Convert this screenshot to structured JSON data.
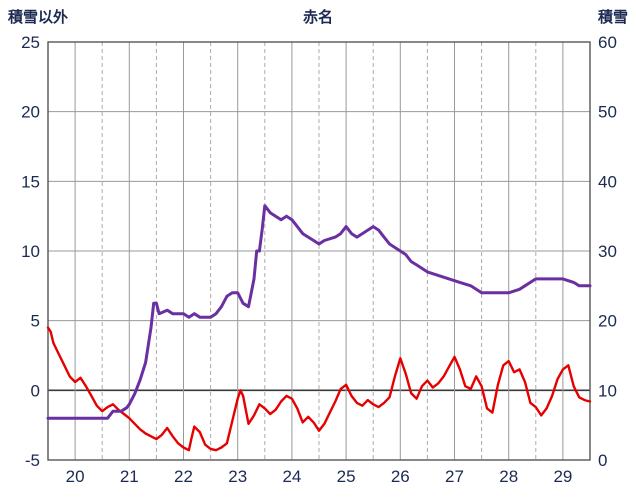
{
  "header": {
    "left_axis_title": "積雪以外",
    "title": "赤名",
    "right_axis_title": "積雪"
  },
  "chart_data": {
    "type": "line",
    "title": "赤名",
    "x_axis": {
      "min": 19.5,
      "max": 29.5,
      "ticks": [
        20,
        21,
        22,
        23,
        24,
        25,
        26,
        27,
        28,
        29
      ]
    },
    "left_axis": {
      "label": "積雪以外",
      "min": -5,
      "max": 25,
      "ticks": [
        -5,
        0,
        5,
        10,
        15,
        20,
        25
      ]
    },
    "right_axis": {
      "label": "積雪",
      "min": 0,
      "max": 60,
      "ticks": [
        0,
        10,
        20,
        30,
        40,
        50,
        60
      ]
    },
    "grid": {
      "h_solid": true,
      "v_solid_at_days": true,
      "v_dashed_at_half_days": true,
      "zero_line_emphasized": true
    },
    "colors": {
      "grid": "#9a9a9a",
      "grid_dashed": "#ababab",
      "zero_line": "#3a3a3a",
      "frame": "#555555",
      "tick_text": "#1c2a52"
    },
    "series": [
      {
        "name": "積雪以外",
        "axis": "left",
        "color": "#e60000",
        "width": 2.4,
        "points": [
          [
            19.5,
            4.5
          ],
          [
            19.55,
            4.2
          ],
          [
            19.6,
            3.4
          ],
          [
            19.7,
            2.6
          ],
          [
            19.8,
            1.8
          ],
          [
            19.9,
            1.0
          ],
          [
            20.0,
            0.6
          ],
          [
            20.1,
            0.9
          ],
          [
            20.2,
            0.3
          ],
          [
            20.3,
            -0.4
          ],
          [
            20.4,
            -1.1
          ],
          [
            20.5,
            -1.5
          ],
          [
            20.6,
            -1.2
          ],
          [
            20.7,
            -1.0
          ],
          [
            20.8,
            -1.4
          ],
          [
            20.9,
            -1.7
          ],
          [
            21.0,
            -2.0
          ],
          [
            21.1,
            -2.4
          ],
          [
            21.2,
            -2.8
          ],
          [
            21.3,
            -3.1
          ],
          [
            21.4,
            -3.3
          ],
          [
            21.5,
            -3.5
          ],
          [
            21.6,
            -3.2
          ],
          [
            21.7,
            -2.7
          ],
          [
            21.8,
            -3.3
          ],
          [
            21.9,
            -3.8
          ],
          [
            22.0,
            -4.1
          ],
          [
            22.1,
            -4.3
          ],
          [
            22.15,
            -3.4
          ],
          [
            22.2,
            -2.6
          ],
          [
            22.3,
            -3.0
          ],
          [
            22.4,
            -3.9
          ],
          [
            22.5,
            -4.2
          ],
          [
            22.6,
            -4.3
          ],
          [
            22.7,
            -4.1
          ],
          [
            22.8,
            -3.8
          ],
          [
            22.9,
            -2.2
          ],
          [
            23.0,
            -0.6
          ],
          [
            23.05,
            0.0
          ],
          [
            23.1,
            -0.4
          ],
          [
            23.2,
            -2.4
          ],
          [
            23.3,
            -1.8
          ],
          [
            23.4,
            -1.0
          ],
          [
            23.5,
            -1.3
          ],
          [
            23.6,
            -1.7
          ],
          [
            23.7,
            -1.4
          ],
          [
            23.8,
            -0.8
          ],
          [
            23.9,
            -0.4
          ],
          [
            24.0,
            -0.6
          ],
          [
            24.1,
            -1.3
          ],
          [
            24.2,
            -2.3
          ],
          [
            24.3,
            -1.9
          ],
          [
            24.4,
            -2.3
          ],
          [
            24.5,
            -2.9
          ],
          [
            24.6,
            -2.4
          ],
          [
            24.7,
            -1.6
          ],
          [
            24.8,
            -0.8
          ],
          [
            24.9,
            0.1
          ],
          [
            25.0,
            0.4
          ],
          [
            25.1,
            -0.4
          ],
          [
            25.2,
            -0.9
          ],
          [
            25.3,
            -1.1
          ],
          [
            25.4,
            -0.7
          ],
          [
            25.5,
            -1.0
          ],
          [
            25.6,
            -1.2
          ],
          [
            25.7,
            -0.9
          ],
          [
            25.8,
            -0.5
          ],
          [
            25.9,
            1.0
          ],
          [
            26.0,
            2.3
          ],
          [
            26.1,
            1.2
          ],
          [
            26.2,
            -0.2
          ],
          [
            26.3,
            -0.6
          ],
          [
            26.4,
            0.3
          ],
          [
            26.5,
            0.7
          ],
          [
            26.6,
            0.2
          ],
          [
            26.7,
            0.5
          ],
          [
            26.8,
            1.0
          ],
          [
            26.9,
            1.7
          ],
          [
            27.0,
            2.4
          ],
          [
            27.1,
            1.5
          ],
          [
            27.2,
            0.3
          ],
          [
            27.3,
            0.1
          ],
          [
            27.4,
            1.0
          ],
          [
            27.5,
            0.3
          ],
          [
            27.6,
            -1.3
          ],
          [
            27.7,
            -1.6
          ],
          [
            27.8,
            0.4
          ],
          [
            27.9,
            1.8
          ],
          [
            28.0,
            2.1
          ],
          [
            28.1,
            1.3
          ],
          [
            28.2,
            1.5
          ],
          [
            28.3,
            0.6
          ],
          [
            28.4,
            -0.9
          ],
          [
            28.5,
            -1.2
          ],
          [
            28.6,
            -1.8
          ],
          [
            28.7,
            -1.3
          ],
          [
            28.8,
            -0.4
          ],
          [
            28.9,
            0.8
          ],
          [
            29.0,
            1.5
          ],
          [
            29.1,
            1.8
          ],
          [
            29.2,
            0.3
          ],
          [
            29.3,
            -0.5
          ],
          [
            29.4,
            -0.7
          ],
          [
            29.5,
            -0.8
          ]
        ]
      },
      {
        "name": "積雪",
        "axis": "right",
        "color": "#6a2fa0",
        "width": 3,
        "points": [
          [
            19.5,
            6
          ],
          [
            20.0,
            6
          ],
          [
            20.5,
            6
          ],
          [
            20.6,
            6
          ],
          [
            20.7,
            7
          ],
          [
            20.85,
            7
          ],
          [
            20.95,
            7.5
          ],
          [
            21.0,
            8
          ],
          [
            21.1,
            9.5
          ],
          [
            21.2,
            11.5
          ],
          [
            21.3,
            14
          ],
          [
            21.4,
            19
          ],
          [
            21.45,
            22.5
          ],
          [
            21.5,
            22.5
          ],
          [
            21.55,
            21
          ],
          [
            21.7,
            21.5
          ],
          [
            21.8,
            21
          ],
          [
            22.0,
            21
          ],
          [
            22.1,
            20.5
          ],
          [
            22.2,
            21
          ],
          [
            22.3,
            20.5
          ],
          [
            22.5,
            20.5
          ],
          [
            22.6,
            21
          ],
          [
            22.7,
            22
          ],
          [
            22.8,
            23.5
          ],
          [
            22.9,
            24
          ],
          [
            23.0,
            24
          ],
          [
            23.1,
            22.5
          ],
          [
            23.2,
            22
          ],
          [
            23.3,
            26
          ],
          [
            23.35,
            30
          ],
          [
            23.4,
            30
          ],
          [
            23.45,
            33
          ],
          [
            23.5,
            36.5
          ],
          [
            23.6,
            35.5
          ],
          [
            23.7,
            35
          ],
          [
            23.8,
            34.5
          ],
          [
            23.9,
            35
          ],
          [
            24.0,
            34.5
          ],
          [
            24.1,
            33.5
          ],
          [
            24.2,
            32.5
          ],
          [
            24.3,
            32
          ],
          [
            24.4,
            31.5
          ],
          [
            24.5,
            31
          ],
          [
            24.6,
            31.5
          ],
          [
            24.8,
            32
          ],
          [
            24.9,
            32.5
          ],
          [
            25.0,
            33.5
          ],
          [
            25.1,
            32.5
          ],
          [
            25.2,
            32
          ],
          [
            25.3,
            32.5
          ],
          [
            25.5,
            33.5
          ],
          [
            25.6,
            33
          ],
          [
            25.7,
            32
          ],
          [
            25.8,
            31
          ],
          [
            26.0,
            30
          ],
          [
            26.1,
            29.5
          ],
          [
            26.2,
            28.5
          ],
          [
            26.3,
            28
          ],
          [
            26.5,
            27
          ],
          [
            26.7,
            26.5
          ],
          [
            26.9,
            26
          ],
          [
            27.1,
            25.5
          ],
          [
            27.3,
            25
          ],
          [
            27.5,
            24
          ],
          [
            27.8,
            24
          ],
          [
            28.0,
            24
          ],
          [
            28.2,
            24.5
          ],
          [
            28.3,
            25
          ],
          [
            28.5,
            26
          ],
          [
            28.8,
            26
          ],
          [
            29.0,
            26
          ],
          [
            29.2,
            25.5
          ],
          [
            29.3,
            25
          ],
          [
            29.5,
            25
          ]
        ]
      }
    ]
  }
}
